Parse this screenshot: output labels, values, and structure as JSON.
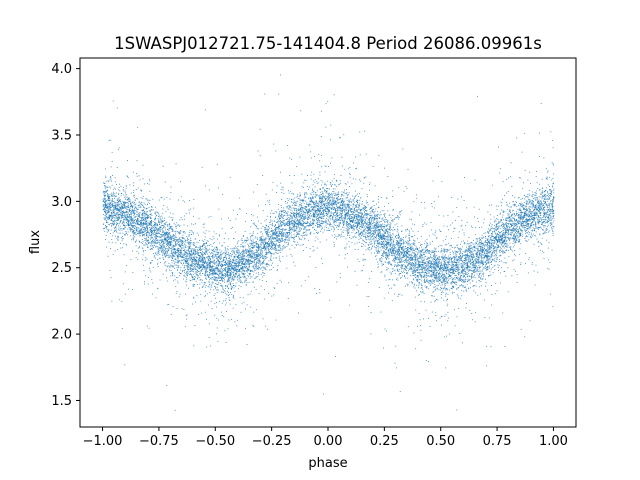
{
  "chart_data": {
    "type": "scatter",
    "title": "1SWASPJ012721.75-141404.8 Period 26086.09961s",
    "xlabel": "phase",
    "ylabel": "flux",
    "xlim": [
      -1.1,
      1.1
    ],
    "ylim": [
      1.3,
      4.08
    ],
    "x_ticks": [
      -1.0,
      -0.75,
      -0.5,
      -0.25,
      0.0,
      0.25,
      0.5,
      0.75,
      1.0
    ],
    "x_tick_labels": [
      "−1.00",
      "−0.75",
      "−0.50",
      "−0.25",
      "0.00",
      "0.25",
      "0.50",
      "0.75",
      "1.00"
    ],
    "y_ticks": [
      1.5,
      2.0,
      2.5,
      3.0,
      3.5,
      4.0
    ],
    "y_tick_labels": [
      "1.5",
      "2.0",
      "2.5",
      "3.0",
      "3.5",
      "4.0"
    ],
    "grid": false,
    "legend": "none",
    "marker_color": "#1f77b4",
    "series": [
      {
        "x": [
          -1.0,
          -0.9,
          -0.8,
          -0.7,
          -0.6,
          -0.5,
          -0.45,
          -0.4,
          -0.3,
          -0.2,
          -0.1,
          0.0,
          0.1,
          0.2,
          0.3,
          0.4,
          0.5,
          0.55,
          0.6,
          0.7,
          0.8,
          0.9,
          1.0
        ],
        "y": [
          2.96,
          2.9,
          2.82,
          2.68,
          2.57,
          2.5,
          2.48,
          2.52,
          2.62,
          2.8,
          2.9,
          2.97,
          2.9,
          2.8,
          2.64,
          2.53,
          2.49,
          2.48,
          2.52,
          2.62,
          2.8,
          2.9,
          2.95
        ]
      }
    ]
  }
}
